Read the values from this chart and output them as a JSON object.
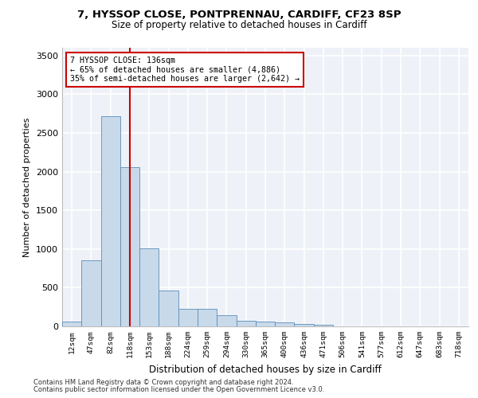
{
  "title_line1": "7, HYSSOP CLOSE, PONTPRENNAU, CARDIFF, CF23 8SP",
  "title_line2": "Size of property relative to detached houses in Cardiff",
  "xlabel": "Distribution of detached houses by size in Cardiff",
  "ylabel": "Number of detached properties",
  "categories": [
    "12sqm",
    "47sqm",
    "82sqm",
    "118sqm",
    "153sqm",
    "188sqm",
    "224sqm",
    "259sqm",
    "294sqm",
    "330sqm",
    "365sqm",
    "400sqm",
    "436sqm",
    "471sqm",
    "506sqm",
    "541sqm",
    "577sqm",
    "612sqm",
    "647sqm",
    "683sqm",
    "718sqm"
  ],
  "values": [
    60,
    850,
    2720,
    2060,
    1010,
    460,
    230,
    230,
    140,
    75,
    60,
    50,
    30,
    20,
    0,
    0,
    0,
    0,
    0,
    0,
    0
  ],
  "bar_color": "#c8d9ea",
  "bar_edge_color": "#5b8db8",
  "red_line_x": 3.0,
  "annotation_text": "7 HYSSOP CLOSE: 136sqm\n← 65% of detached houses are smaller (4,886)\n35% of semi-detached houses are larger (2,642) →",
  "annotation_box_color": "#ffffff",
  "annotation_box_edge": "#cc0000",
  "red_line_color": "#cc0000",
  "background_color": "#eef2f8",
  "grid_color": "#ffffff",
  "ylim": [
    0,
    3600
  ],
  "yticks": [
    0,
    500,
    1000,
    1500,
    2000,
    2500,
    3000,
    3500
  ],
  "footer_line1": "Contains HM Land Registry data © Crown copyright and database right 2024.",
  "footer_line2": "Contains public sector information licensed under the Open Government Licence v3.0."
}
